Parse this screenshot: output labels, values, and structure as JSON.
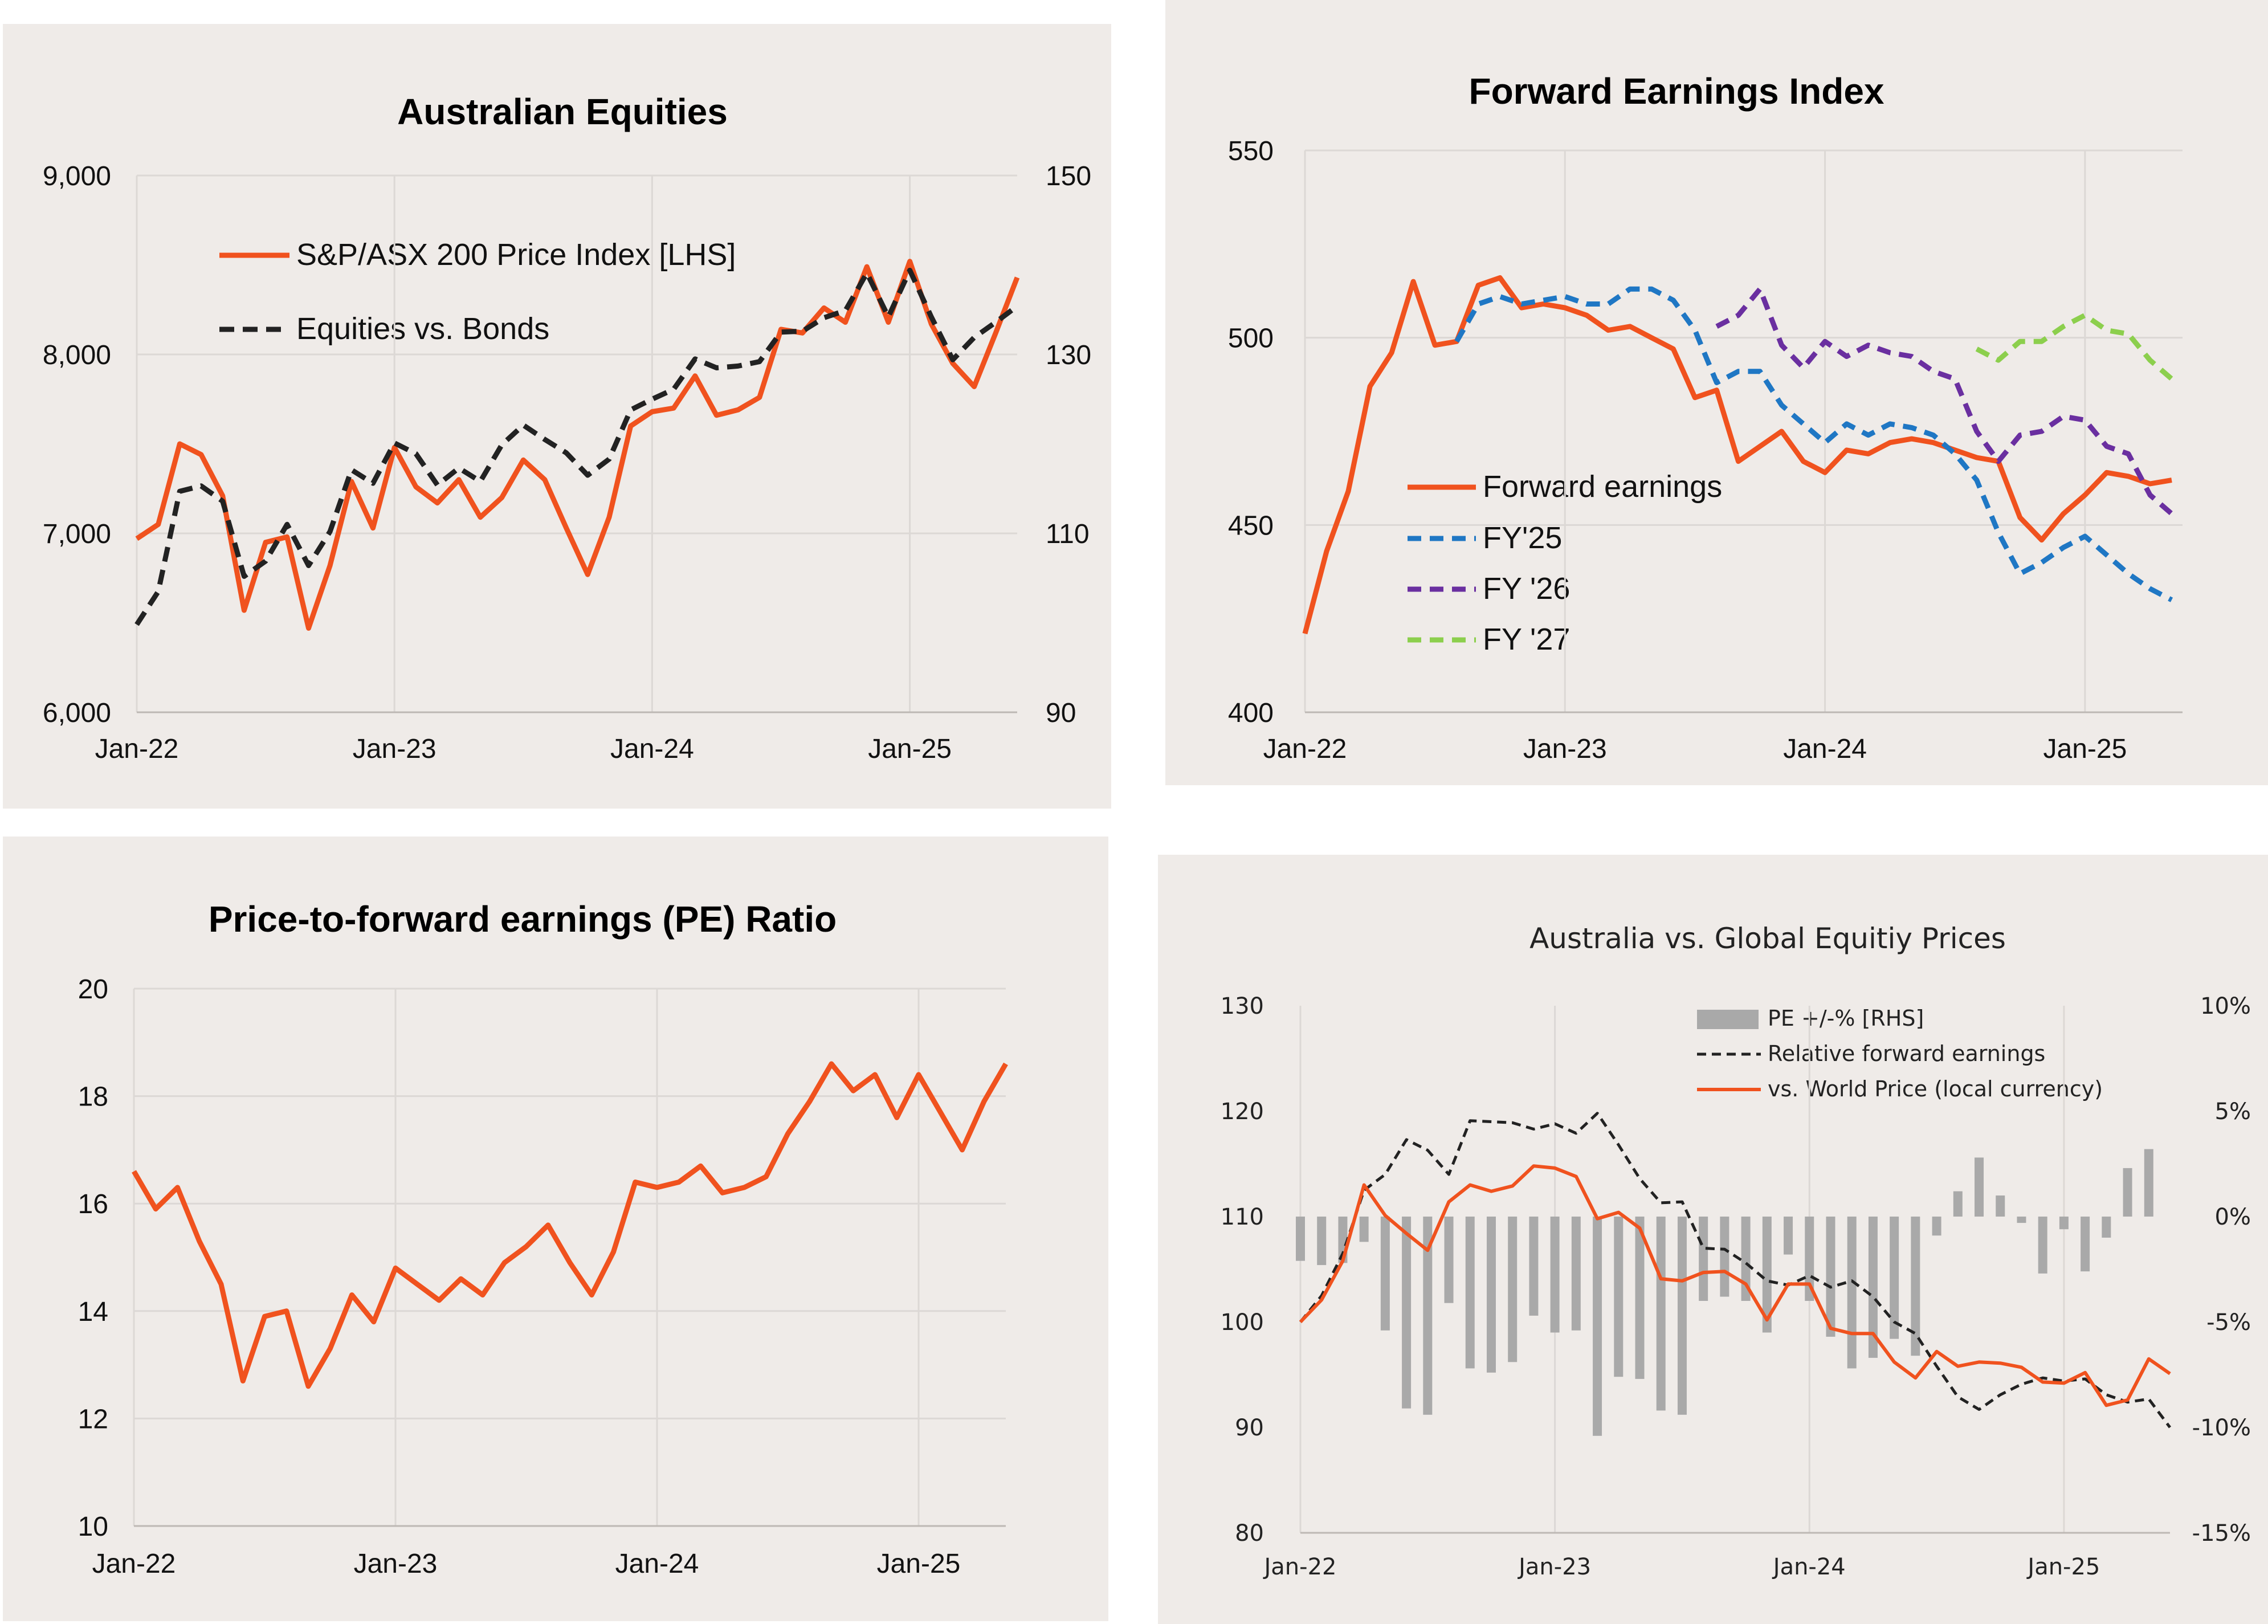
{
  "colors": {
    "background": "#efebe8",
    "orange": "#f0521e",
    "black": "#222222",
    "blue": "#1f77c4",
    "purple": "#6a2fa0",
    "green": "#8ccf4d",
    "grey_bars": "#a9a9a9",
    "grid": "#dcd8d5"
  },
  "chart_data": [
    {
      "type": "line",
      "title": "Australian Equities",
      "x_tick_labels": [
        "Jan-22",
        "Jan-23",
        "Jan-24",
        "Jan-25"
      ],
      "y_left_ticks": [
        "6,000",
        "7,000",
        "8,000",
        "9,000"
      ],
      "y_left_range": [
        6000,
        9000
      ],
      "y_right_ticks": [
        "90",
        "110",
        "130",
        "150"
      ],
      "y_right_range": [
        90,
        150
      ],
      "x_range": [
        0,
        41
      ],
      "grid": "vertical",
      "legend_position": "top-left",
      "series": [
        {
          "name": "S&P/ASX 200 Price Index [LHS]",
          "axis": "left",
          "color": "#f0521e",
          "style": "solid",
          "x": [
            0,
            1,
            2,
            3,
            4,
            5,
            6,
            7,
            8,
            9,
            10,
            11,
            12,
            13,
            14,
            15,
            16,
            17,
            18,
            19,
            20,
            21,
            22,
            23,
            24,
            25,
            26,
            27,
            28,
            29,
            30,
            31,
            32,
            33,
            34,
            35,
            36,
            37,
            38,
            39,
            40,
            41
          ],
          "values": [
            6970,
            7050,
            7500,
            7440,
            7210,
            6570,
            6950,
            6980,
            6470,
            6820,
            7290,
            7030,
            7480,
            7260,
            7170,
            7300,
            7090,
            7200,
            7410,
            7300,
            7030,
            6770,
            7090,
            7600,
            7680,
            7700,
            7880,
            7660,
            7690,
            7760,
            8140,
            8120,
            8260,
            8180,
            8490,
            8180,
            8520,
            8170,
            7950,
            7820,
            8120,
            8430
          ]
        },
        {
          "name": "Equities vs. Bonds",
          "axis": "right",
          "color": "#222222",
          "style": "dashed",
          "x": [
            0,
            1,
            2,
            3,
            4,
            5,
            6,
            7,
            8,
            9,
            10,
            11,
            12,
            13,
            14,
            15,
            16,
            17,
            18,
            19,
            20,
            21,
            22,
            23,
            24,
            25,
            26,
            27,
            28,
            29,
            30,
            31,
            32,
            33,
            34,
            35,
            36,
            37,
            38,
            39,
            40,
            41
          ],
          "values": [
            99.8,
            103.5,
            114.7,
            115.3,
            113.6,
            105.2,
            106.9,
            111,
            106.4,
            110.2,
            117.1,
            115.6,
            120.1,
            118.9,
            115.4,
            117.3,
            115.8,
            119.9,
            122.1,
            120.5,
            119,
            116.5,
            118.3,
            123.8,
            125,
            126.1,
            129.5,
            128.5,
            128.7,
            129.2,
            132.5,
            132.6,
            134.1,
            134.9,
            139.1,
            134.2,
            139.4,
            134.2,
            129.4,
            131.9,
            133.6,
            135.4
          ]
        }
      ]
    },
    {
      "type": "line",
      "title": "Forward Earnings Index",
      "x_tick_labels": [
        "Jan-22",
        "Jan-23",
        "Jan-24",
        "Jan-25"
      ],
      "y_ticks": [
        "400",
        "450",
        "500",
        "550"
      ],
      "y_range": [
        400,
        550
      ],
      "x_range": [
        0,
        40.5
      ],
      "grid": "vertical",
      "legend_position": "bottom-left",
      "series": [
        {
          "name": "Forward earnings",
          "color": "#f0521e",
          "style": "solid",
          "x": [
            0,
            1,
            2,
            3,
            4,
            5,
            6,
            7,
            8,
            9,
            10,
            11,
            12,
            13,
            14,
            15,
            16,
            17,
            18,
            19,
            20,
            21,
            22,
            23,
            24,
            25,
            26,
            27,
            28,
            29,
            30,
            31,
            32,
            33,
            34,
            35,
            36,
            37,
            38,
            39,
            40
          ],
          "values": [
            421,
            443,
            459,
            487,
            496,
            515,
            498,
            499,
            514,
            516,
            508,
            509,
            508,
            506,
            502,
            503,
            500,
            497,
            484,
            486,
            467,
            471,
            475,
            467,
            464,
            470,
            469,
            472,
            473,
            472,
            470,
            468,
            467,
            452,
            446,
            453,
            458,
            464,
            463,
            461,
            462
          ]
        },
        {
          "name": "FY'25",
          "color": "#1f77c4",
          "style": "dashed",
          "x": [
            7,
            8,
            9,
            10,
            11,
            12,
            13,
            14,
            15,
            16,
            17,
            18,
            19,
            20,
            21,
            22,
            23,
            24,
            25,
            26,
            27,
            28,
            29,
            30,
            31,
            32,
            33,
            34,
            35,
            36,
            37,
            38,
            39,
            40
          ],
          "values": [
            499,
            509,
            511,
            509,
            510,
            511,
            509,
            509,
            513,
            513,
            510,
            502,
            488,
            491,
            491,
            482,
            477,
            472,
            477,
            474,
            477,
            476,
            474,
            469,
            462,
            448,
            437,
            440,
            444,
            447,
            442,
            437,
            433,
            430
          ]
        },
        {
          "name": "FY '26",
          "color": "#6a2fa0",
          "style": "dashed",
          "x": [
            19,
            20,
            21,
            22,
            23,
            24,
            25,
            26,
            27,
            28,
            29,
            30,
            31,
            32,
            33,
            34,
            35,
            36,
            37,
            38,
            39,
            40
          ],
          "values": [
            503,
            506,
            513,
            498,
            492,
            499,
            495,
            498,
            496,
            495,
            491,
            489,
            475,
            467,
            474,
            475,
            479,
            478,
            471,
            469,
            458,
            453
          ]
        },
        {
          "name": "FY '27",
          "color": "#8ccf4d",
          "style": "dashed",
          "x": [
            31,
            32,
            33,
            34,
            35,
            36,
            37,
            38,
            39,
            40
          ],
          "values": [
            497,
            494,
            499,
            499,
            503,
            506,
            502,
            501,
            494,
            489
          ]
        }
      ]
    },
    {
      "type": "line",
      "title": "Price-to-forward earnings (PE) Ratio",
      "x_tick_labels": [
        "Jan-22",
        "Jan-23",
        "Jan-24",
        "Jan-25"
      ],
      "y_ticks": [
        "10",
        "12",
        "14",
        "16",
        "18",
        "20"
      ],
      "y_range": [
        10,
        20
      ],
      "x_range": [
        0,
        40
      ],
      "grid": "vertical",
      "series": [
        {
          "name": "",
          "color": "#f0521e",
          "style": "solid",
          "x": [
            0,
            1,
            2,
            3,
            4,
            5,
            6,
            7,
            8,
            9,
            10,
            11,
            12,
            13,
            14,
            15,
            16,
            17,
            18,
            19,
            20,
            21,
            22,
            23,
            24,
            25,
            26,
            27,
            28,
            29,
            30,
            31,
            32,
            33,
            34,
            35,
            36,
            37,
            38,
            39,
            40
          ],
          "values": [
            16.6,
            15.9,
            16.3,
            15.3,
            14.5,
            12.7,
            13.9,
            14,
            12.6,
            13.3,
            14.3,
            13.8,
            14.8,
            14.5,
            14.2,
            14.6,
            14.3,
            14.9,
            15.2,
            15.6,
            14.9,
            14.3,
            15.1,
            16.4,
            16.3,
            16.4,
            16.7,
            16.2,
            16.3,
            16.5,
            17.3,
            17.9,
            18.6,
            18.1,
            18.4,
            17.6,
            18.4,
            17.7,
            17,
            17.9,
            18.6
          ]
        }
      ]
    },
    {
      "type": "bar",
      "title": "Australia vs. Global Equitiy Prices",
      "x_tick_labels": [
        "Jan-22",
        "Jan-23",
        "Jan-24",
        "Jan-25"
      ],
      "y_left_ticks": [
        "80",
        "90",
        "100",
        "110",
        "120",
        "130"
      ],
      "y_left_range": [
        80,
        130
      ],
      "y_right_ticks": [
        "-15%",
        "-10%",
        "-5%",
        "0%",
        "5%",
        "10%"
      ],
      "y_right_range": [
        -15,
        10
      ],
      "x_range": [
        0,
        41
      ],
      "grid": "vertical",
      "legend_position": "top-center",
      "series": [
        {
          "name": "PE +/-% [RHS]",
          "axis": "right",
          "type": "bar",
          "color": "#a9a9a9",
          "x": [
            0,
            1,
            2,
            3,
            4,
            5,
            6,
            7,
            8,
            9,
            10,
            11,
            12,
            13,
            14,
            15,
            16,
            17,
            18,
            19,
            20,
            21,
            22,
            23,
            24,
            25,
            26,
            27,
            28,
            29,
            30,
            31,
            32,
            33,
            34,
            35,
            36,
            37,
            38,
            39,
            40
          ],
          "values": [
            -2.1,
            -2.3,
            -2.2,
            -1.2,
            -5.4,
            -9.1,
            -9.4,
            -4.1,
            -7.2,
            -7.4,
            -6.9,
            -4.7,
            -5.5,
            -5.4,
            -10.4,
            -7.6,
            -7.7,
            -9.2,
            -9.4,
            -4,
            -3.8,
            -4,
            -5.5,
            -1.8,
            -4,
            -5.7,
            -7.2,
            -6.7,
            -5.8,
            -6.6,
            -0.9,
            1.2,
            2.8,
            1,
            -0.3,
            -2.7,
            -0.6,
            -2.6,
            -1,
            2.3,
            3.2
          ]
        },
        {
          "name": "Relative forward earnings",
          "axis": "left",
          "type": "line",
          "color": "#222222",
          "style": "dashed",
          "x": [
            0,
            1,
            2,
            3,
            4,
            5,
            6,
            7,
            8,
            9,
            10,
            11,
            12,
            13,
            14,
            15,
            16,
            17,
            18,
            19,
            20,
            21,
            22,
            23,
            24,
            25,
            26,
            27,
            28,
            29,
            30,
            31,
            32,
            33,
            34,
            35,
            36,
            37,
            38,
            39,
            40,
            41
          ],
          "values": [
            100,
            102.5,
            106.5,
            112.5,
            114,
            117.3,
            116.3,
            114,
            119.1,
            119,
            118.9,
            118.3,
            118.8,
            117.9,
            119.8,
            116.8,
            113.6,
            111.3,
            111.4,
            107,
            106.9,
            105.6,
            103.9,
            103.5,
            104.4,
            103.3,
            103.9,
            102.4,
            100,
            98.9,
            95.8,
            92.9,
            91.7,
            93.1,
            94.1,
            94.7,
            94.4,
            94.6,
            93.1,
            92.4,
            92.7,
            90
          ]
        },
        {
          "name": "vs. World Price (local currency)",
          "axis": "left",
          "type": "line",
          "color": "#f0521e",
          "style": "solid",
          "x": [
            0,
            1,
            2,
            3,
            4,
            5,
            6,
            7,
            8,
            9,
            10,
            11,
            12,
            13,
            14,
            15,
            16,
            17,
            18,
            19,
            20,
            21,
            22,
            23,
            24,
            25,
            26,
            27,
            28,
            29,
            30,
            31,
            32,
            33,
            34,
            35,
            36,
            37,
            38,
            39,
            40,
            41
          ],
          "values": [
            100,
            102.1,
            105.8,
            113,
            110.1,
            108.4,
            106.8,
            111.4,
            113,
            112.4,
            112.9,
            114.8,
            114.6,
            113.8,
            109.8,
            110.4,
            108.9,
            104.1,
            103.9,
            104.7,
            104.8,
            103.6,
            100.2,
            103.6,
            103.6,
            99.4,
            98.9,
            98.9,
            96.2,
            94.7,
            97.2,
            95.8,
            96.2,
            96.1,
            95.7,
            94.3,
            94.2,
            95.2,
            92.1,
            92.6,
            96.5,
            95.1
          ]
        }
      ]
    }
  ]
}
